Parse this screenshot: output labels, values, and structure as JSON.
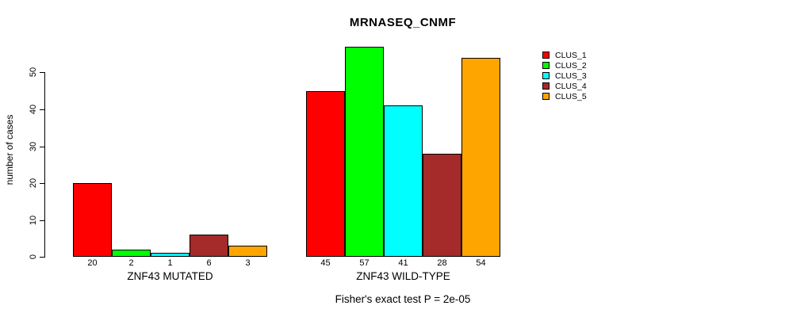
{
  "chart_data": {
    "type": "bar",
    "title": "MRNASEQ_CNMF",
    "xlabel": "",
    "ylabel": "number of cases",
    "yticks": [
      0,
      10,
      20,
      30,
      40,
      50
    ],
    "ylim": [
      0,
      50
    ],
    "grid": false,
    "legend_position": "top-right",
    "categories": [
      "ZNF43 MUTATED",
      "ZNF43 WILD-TYPE"
    ],
    "series": [
      {
        "name": "CLUS_1",
        "color": "#ff0000",
        "values": [
          20,
          45
        ]
      },
      {
        "name": "CLUS_2",
        "color": "#00ff00",
        "values": [
          2,
          57
        ]
      },
      {
        "name": "CLUS_3",
        "color": "#00ffff",
        "values": [
          1,
          41
        ]
      },
      {
        "name": "CLUS_4",
        "color": "#a52a2a",
        "values": [
          6,
          28
        ]
      },
      {
        "name": "CLUS_5",
        "color": "#ffa500",
        "values": [
          3,
          54
        ]
      }
    ],
    "annotation": "Fisher's exact test P = 2e-05"
  }
}
